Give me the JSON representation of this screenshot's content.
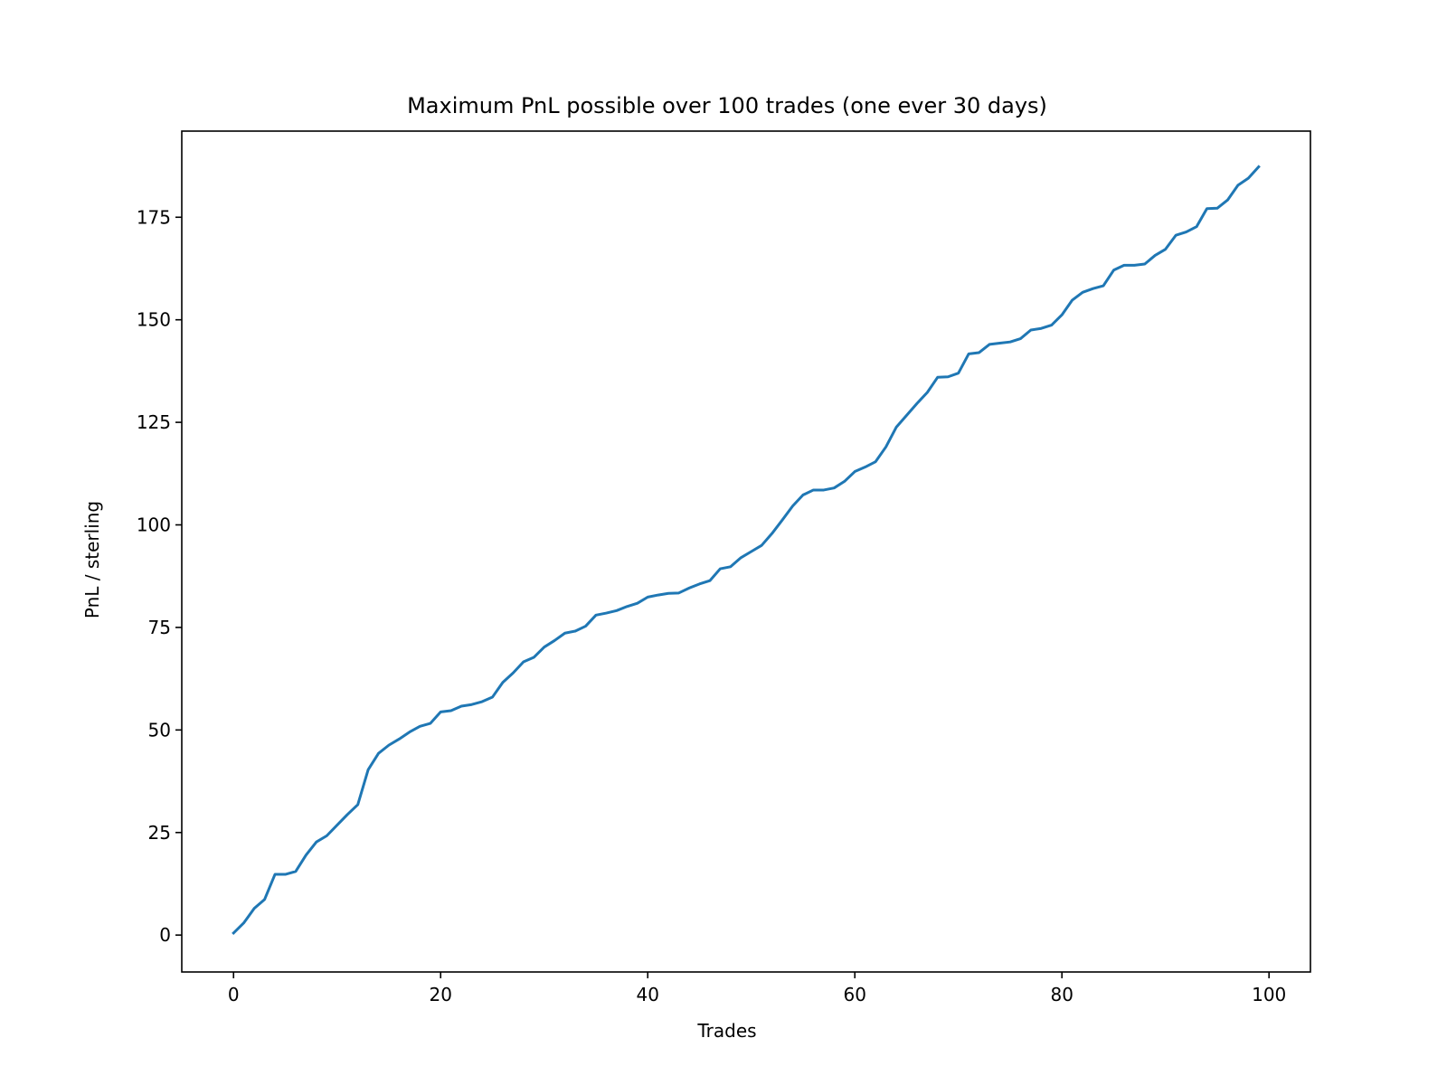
{
  "chart_data": {
    "type": "line",
    "title": "Maximum PnL possible over 100 trades (one ever 30 days)",
    "xlabel": "Trades",
    "ylabel": "PnL / sterling",
    "xlim": [
      -5,
      104
    ],
    "ylim": [
      -9,
      196
    ],
    "xticks": [
      0,
      20,
      40,
      60,
      80,
      100
    ],
    "yticks": [
      0,
      25,
      50,
      75,
      100,
      125,
      150,
      175
    ],
    "grid": false,
    "colors": {
      "series": "#1f77b4",
      "axes": "#000000",
      "background": "#ffffff"
    },
    "series": [
      {
        "x": [
          0,
          1,
          2,
          3,
          4,
          5,
          6,
          7,
          8,
          9,
          10,
          11,
          12,
          13,
          14,
          15,
          16,
          17,
          18,
          19,
          20,
          21,
          22,
          23,
          24,
          25,
          26,
          27,
          28,
          29,
          30,
          31,
          32,
          33,
          34,
          35,
          36,
          37,
          38,
          39,
          40,
          41,
          42,
          43,
          44,
          45,
          46,
          47,
          48,
          49,
          50,
          51,
          52,
          53,
          54,
          55,
          56,
          57,
          58,
          59,
          60,
          61,
          62,
          63,
          64,
          65,
          66,
          67,
          68,
          69,
          70,
          71,
          72,
          73,
          74,
          75,
          76,
          77,
          78,
          79,
          80,
          81,
          82,
          83,
          84,
          85,
          86,
          87,
          88,
          89,
          90,
          91,
          92,
          93,
          94,
          95,
          96,
          97,
          98,
          99
        ],
        "values": [
          0.5,
          3,
          6.5,
          8.7,
          14.8,
          14.8,
          15.5,
          19.5,
          22.7,
          24.2,
          26.8,
          29.4,
          31.8,
          40.3,
          44.3,
          46.3,
          47.8,
          49.5,
          50.9,
          51.6,
          54.4,
          54.7,
          55.8,
          56.2,
          56.9,
          58,
          61.6,
          63.9,
          66.6,
          67.7,
          70.2,
          71.8,
          73.6,
          74.1,
          75.3,
          78,
          78.5,
          79.1,
          80.1,
          80.9,
          82.4,
          82.9,
          83.3,
          83.4,
          84.6,
          85.6,
          86.4,
          89.3,
          89.8,
          92,
          93.5,
          95,
          97.9,
          101.2,
          104.6,
          107.3,
          108.5,
          108.5,
          109,
          110.6,
          113,
          114.1,
          115.4,
          119,
          123.8,
          126.7,
          129.6,
          132.3,
          136,
          136.1,
          137,
          141.7,
          142,
          144,
          144.3,
          144.6,
          145.4,
          147.5,
          147.9,
          148.7,
          151.2,
          154.8,
          156.7,
          157.6,
          158.3,
          162.1,
          163.3,
          163.3,
          163.6,
          165.7,
          167.2,
          170.6,
          171.4,
          172.7,
          177.1,
          177.2,
          179.2,
          182.8,
          184.5,
          187.3
        ]
      }
    ]
  }
}
